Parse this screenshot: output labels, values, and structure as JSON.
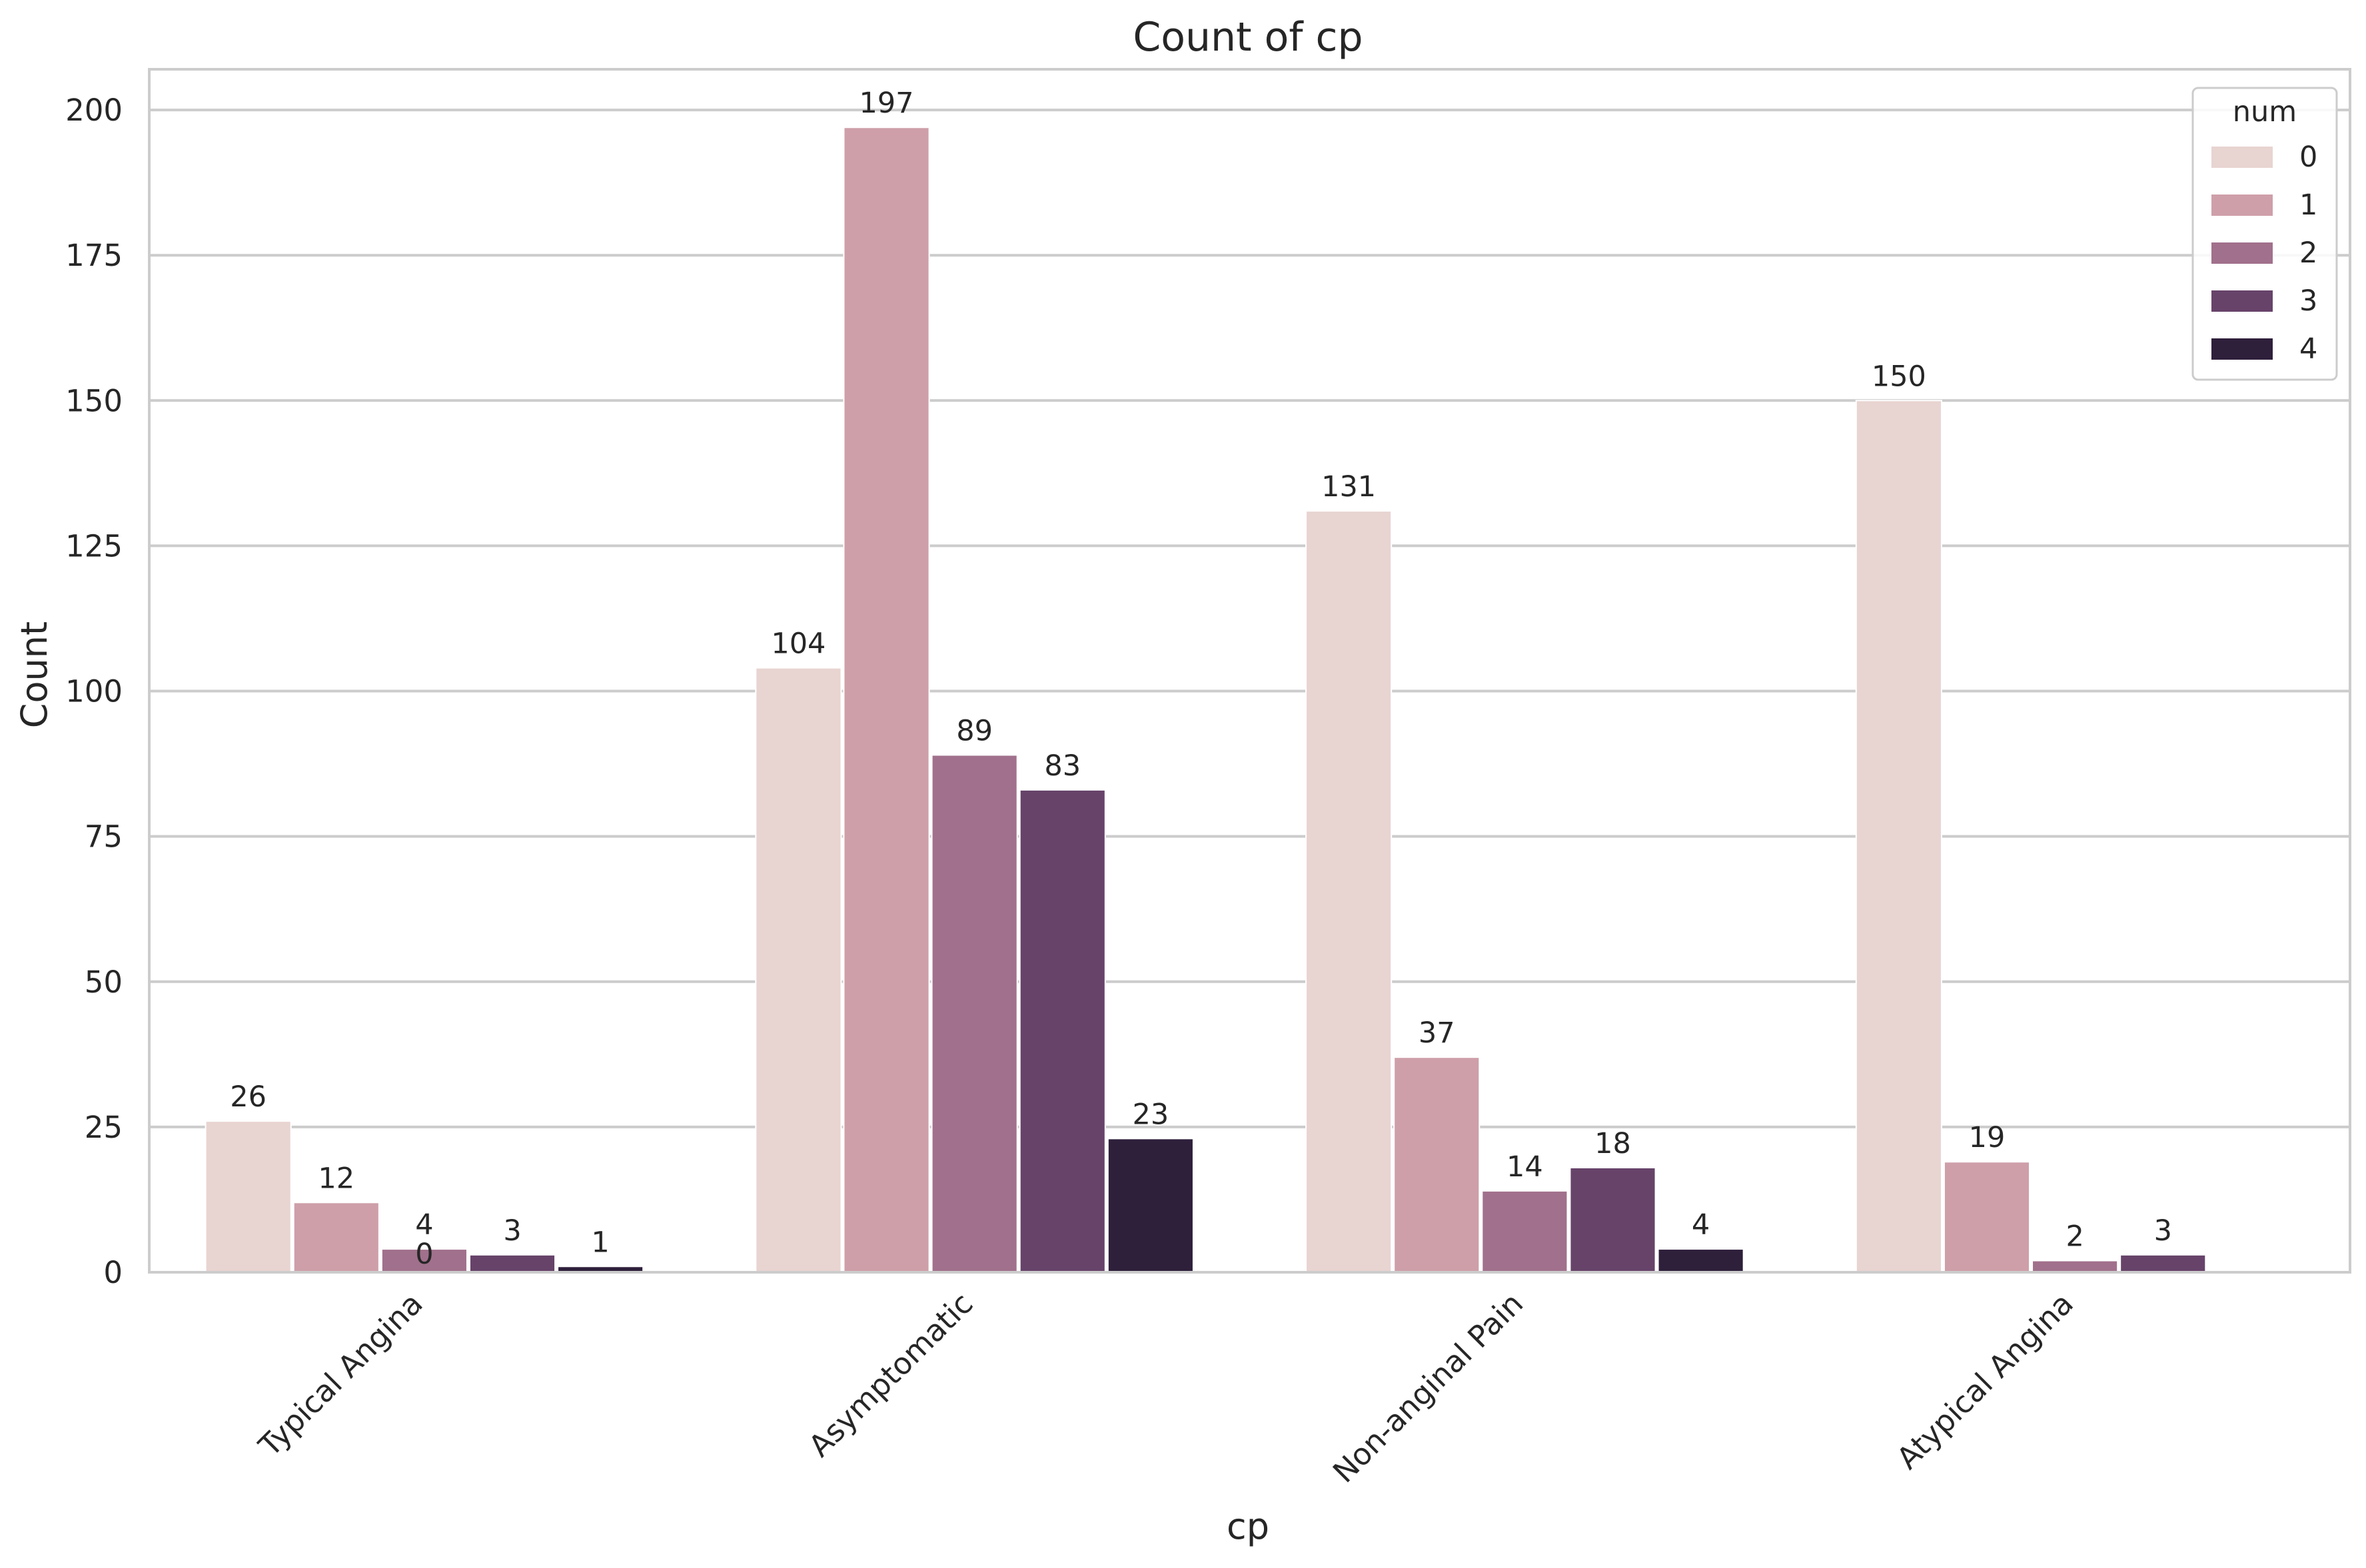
{
  "chart_data": {
    "type": "bar",
    "title": "Count of cp",
    "xlabel": "cp",
    "ylabel": "Count",
    "categories": [
      "Typical Angina",
      "Asymptomatic",
      "Non-anginal Pain",
      "Atypical Angina"
    ],
    "series": [
      {
        "name": "0",
        "color": "#e8d4d1",
        "values": [
          26,
          104,
          131,
          150
        ]
      },
      {
        "name": "1",
        "color": "#ce9fa9",
        "values": [
          12,
          197,
          37,
          19
        ]
      },
      {
        "name": "2",
        "color": "#a1708c",
        "values": [
          4,
          89,
          14,
          2
        ]
      },
      {
        "name": "3",
        "color": "#67436a",
        "values": [
          3,
          83,
          18,
          3
        ]
      },
      {
        "name": "4",
        "color": "#2e1f3b",
        "values": [
          1,
          23,
          4,
          null
        ]
      }
    ],
    "extra_labels": [
      {
        "category": "Typical Angina",
        "series": "2",
        "text": "0"
      }
    ],
    "ylim": [
      0,
      207
    ],
    "yticks": [
      0,
      25,
      50,
      75,
      100,
      125,
      150,
      175,
      200
    ],
    "grid": "horizontal",
    "legend": {
      "title": "num",
      "position": "top-right"
    }
  }
}
